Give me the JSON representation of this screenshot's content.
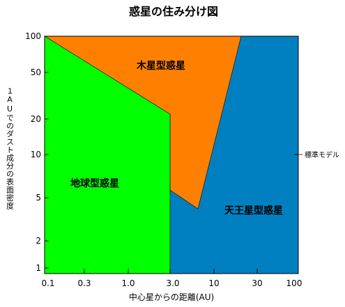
{
  "title": "惑星の住み分け図",
  "y_axis_label": "１AUでのダスト成分の表面密度",
  "x_axis_label": "中心星からの距離(AU)",
  "x_ticks": [
    "0.1",
    "0.3",
    "1.0",
    "3.0",
    "10",
    "30",
    "100"
  ],
  "y_ticks": [
    "100",
    "50",
    "20",
    "10",
    "5",
    "2",
    "1"
  ],
  "regions": {
    "terrestrial": "地球型惑星",
    "jovian": "木星型惑星",
    "uranian": "天王星型惑星"
  },
  "standard_model_label": "標準モデル",
  "colors": {
    "terrestrial": "#00ff00",
    "jovian": "#ff8000",
    "uranian": "#0080c0"
  }
}
